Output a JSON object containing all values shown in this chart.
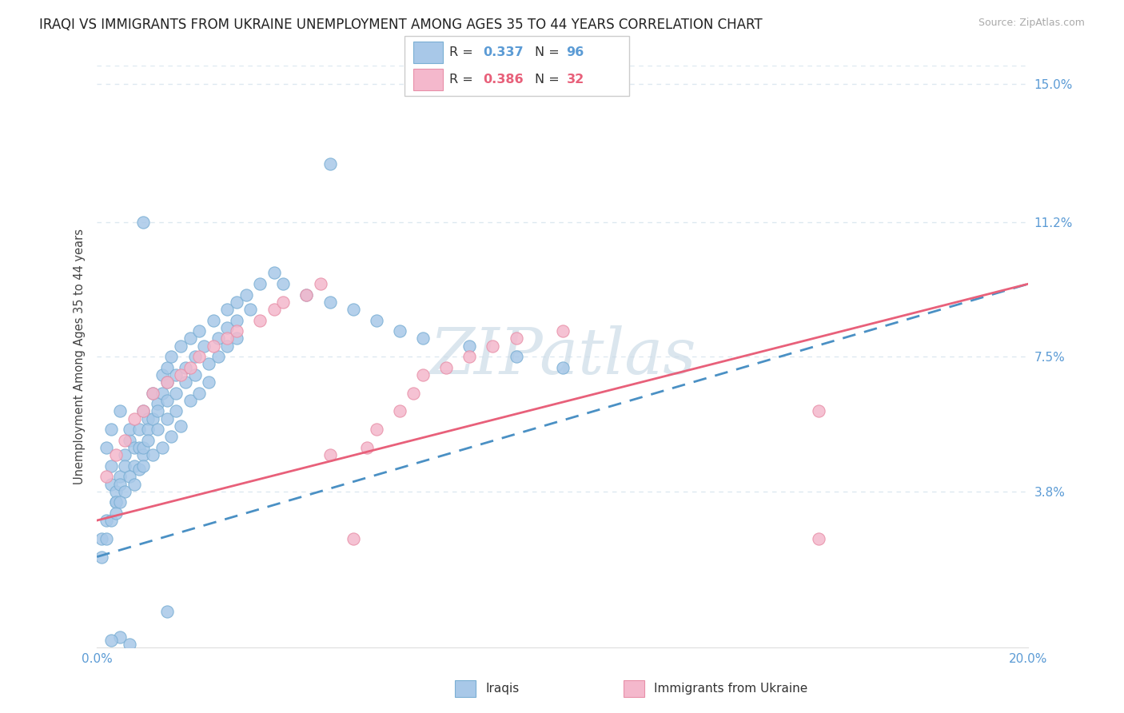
{
  "title": "IRAQI VS IMMIGRANTS FROM UKRAINE UNEMPLOYMENT AMONG AGES 35 TO 44 YEARS CORRELATION CHART",
  "source": "Source: ZipAtlas.com",
  "ylabel": "Unemployment Among Ages 35 to 44 years",
  "xmin": 0.0,
  "xmax": 0.2,
  "ymin": -0.005,
  "ymax": 0.155,
  "ytick_vals": [
    0.038,
    0.075,
    0.112,
    0.15
  ],
  "ytick_labels": [
    "3.8%",
    "7.5%",
    "11.2%",
    "15.0%"
  ],
  "xtick_show": [
    0.0,
    0.2
  ],
  "xtick_labels_show": [
    "0.0%",
    "20.0%"
  ],
  "iraqi_color": "#a8c8e8",
  "iraqi_edge_color": "#7aafd4",
  "ukraine_color": "#f4b8cc",
  "ukraine_edge_color": "#e890a8",
  "iraqi_line_color": "#4a90c4",
  "ukraine_line_color": "#e8607a",
  "watermark_text": "ZIPatlas",
  "watermark_color": "#ccdce8",
  "title_fontsize": 12,
  "axis_label_fontsize": 10.5,
  "tick_fontsize": 11,
  "tick_color": "#5b9bd5",
  "background_color": "#ffffff",
  "grid_color": "#dde8f0",
  "legend_iraqi_color": "#a8c8e8",
  "legend_ukraine_color": "#f4b8cc",
  "legend_r1": "0.337",
  "legend_n1": "96",
  "legend_r2": "0.386",
  "legend_n2": "32",
  "legend_val_color_blue": "#5b9bd5",
  "legend_val_color_pink": "#e8607a",
  "bottom_label1": "Iraqis",
  "bottom_label2": "Immigrants from Ukraine",
  "iraqi_x": [
    0.002,
    0.003,
    0.004,
    0.001,
    0.003,
    0.002,
    0.001,
    0.003,
    0.005,
    0.004,
    0.006,
    0.007,
    0.005,
    0.003,
    0.002,
    0.004,
    0.006,
    0.008,
    0.007,
    0.005,
    0.009,
    0.01,
    0.008,
    0.006,
    0.004,
    0.012,
    0.011,
    0.009,
    0.007,
    0.005,
    0.014,
    0.013,
    0.011,
    0.01,
    0.008,
    0.015,
    0.014,
    0.012,
    0.01,
    0.009,
    0.016,
    0.015,
    0.013,
    0.011,
    0.01,
    0.018,
    0.017,
    0.015,
    0.013,
    0.012,
    0.02,
    0.019,
    0.017,
    0.015,
    0.014,
    0.022,
    0.021,
    0.019,
    0.017,
    0.016,
    0.025,
    0.023,
    0.021,
    0.02,
    0.018,
    0.028,
    0.026,
    0.024,
    0.022,
    0.03,
    0.028,
    0.026,
    0.024,
    0.032,
    0.03,
    0.028,
    0.035,
    0.033,
    0.03,
    0.038,
    0.04,
    0.045,
    0.05,
    0.055,
    0.06,
    0.065,
    0.07,
    0.08,
    0.09,
    0.1,
    0.05,
    0.01,
    0.005,
    0.003,
    0.007,
    0.015
  ],
  "iraqi_y": [
    0.03,
    0.04,
    0.035,
    0.025,
    0.045,
    0.05,
    0.02,
    0.055,
    0.06,
    0.038,
    0.048,
    0.052,
    0.042,
    0.03,
    0.025,
    0.035,
    0.045,
    0.05,
    0.055,
    0.04,
    0.055,
    0.06,
    0.045,
    0.038,
    0.032,
    0.065,
    0.058,
    0.05,
    0.042,
    0.035,
    0.07,
    0.062,
    0.055,
    0.048,
    0.04,
    0.072,
    0.065,
    0.058,
    0.05,
    0.044,
    0.075,
    0.068,
    0.06,
    0.052,
    0.045,
    0.078,
    0.07,
    0.063,
    0.055,
    0.048,
    0.08,
    0.072,
    0.065,
    0.058,
    0.05,
    0.082,
    0.075,
    0.068,
    0.06,
    0.053,
    0.085,
    0.078,
    0.07,
    0.063,
    0.056,
    0.088,
    0.08,
    0.073,
    0.065,
    0.09,
    0.083,
    0.075,
    0.068,
    0.092,
    0.085,
    0.078,
    0.095,
    0.088,
    0.08,
    0.098,
    0.095,
    0.092,
    0.09,
    0.088,
    0.085,
    0.082,
    0.08,
    0.078,
    0.075,
    0.072,
    0.128,
    0.112,
    -0.002,
    -0.003,
    -0.004,
    0.005
  ],
  "ukraine_x": [
    0.002,
    0.004,
    0.006,
    0.008,
    0.01,
    0.012,
    0.015,
    0.018,
    0.02,
    0.022,
    0.025,
    0.028,
    0.03,
    0.035,
    0.038,
    0.04,
    0.045,
    0.048,
    0.05,
    0.055,
    0.058,
    0.06,
    0.065,
    0.068,
    0.07,
    0.075,
    0.08,
    0.085,
    0.09,
    0.1,
    0.155,
    0.155
  ],
  "ukraine_y": [
    0.042,
    0.048,
    0.052,
    0.058,
    0.06,
    0.065,
    0.068,
    0.07,
    0.072,
    0.075,
    0.078,
    0.08,
    0.082,
    0.085,
    0.088,
    0.09,
    0.092,
    0.095,
    0.048,
    0.025,
    0.05,
    0.055,
    0.06,
    0.065,
    0.07,
    0.072,
    0.075,
    0.078,
    0.08,
    0.082,
    0.06,
    0.025
  ]
}
